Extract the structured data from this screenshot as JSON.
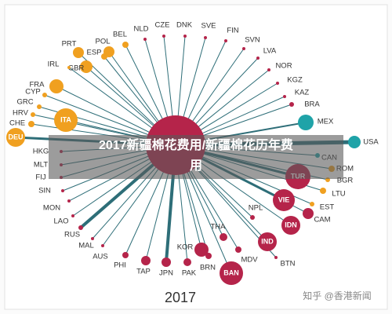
{
  "title": "2017新疆棉花费用/新疆棉花历年费用",
  "year": "2017",
  "watermark": "知乎 @香港新闻",
  "nodes": [
    {
      "label": "PRT"
    },
    {
      "label": "POL"
    },
    {
      "label": "BEL"
    },
    {
      "label": "NLD"
    },
    {
      "label": "CZE"
    },
    {
      "label": "DNK"
    },
    {
      "label": "SVE"
    },
    {
      "label": "FIN"
    },
    {
      "label": "SVN"
    },
    {
      "label": "LVA"
    },
    {
      "label": "NOR"
    },
    {
      "label": "KGZ"
    },
    {
      "label": "KAZ"
    },
    {
      "label": "BRA"
    },
    {
      "label": "MEX"
    },
    {
      "label": "USA"
    },
    {
      "label": "CAN"
    },
    {
      "label": "ROM"
    },
    {
      "label": "BGR"
    },
    {
      "label": "LTU"
    },
    {
      "label": "EST"
    },
    {
      "label": "CAM"
    },
    {
      "label": "TUR"
    },
    {
      "label": "VIE"
    },
    {
      "label": "IDN"
    },
    {
      "label": "NPL"
    },
    {
      "label": "IND"
    },
    {
      "label": "BTN"
    },
    {
      "label": "MDV"
    },
    {
      "label": "THA"
    },
    {
      "label": "BAN"
    },
    {
      "label": "BRN"
    },
    {
      "label": "KOR"
    },
    {
      "label": "PAK"
    },
    {
      "label": "JPN"
    },
    {
      "label": "TAP"
    },
    {
      "label": "PHI"
    },
    {
      "label": "AUS"
    },
    {
      "label": "MAL"
    },
    {
      "label": "RUS"
    },
    {
      "label": "LAO"
    },
    {
      "label": "MON"
    },
    {
      "label": "SIN"
    },
    {
      "label": "FIJ"
    },
    {
      "label": "MLT"
    },
    {
      "label": "HKG"
    },
    {
      "label": "DEU"
    },
    {
      "label": "ITA"
    },
    {
      "label": "CHE"
    },
    {
      "label": "HRV"
    },
    {
      "label": "GRC"
    },
    {
      "label": "CYP"
    },
    {
      "label": "FRA"
    },
    {
      "label": "GBR"
    },
    {
      "label": "IRL"
    },
    {
      "label": "ESP"
    }
  ]
}
